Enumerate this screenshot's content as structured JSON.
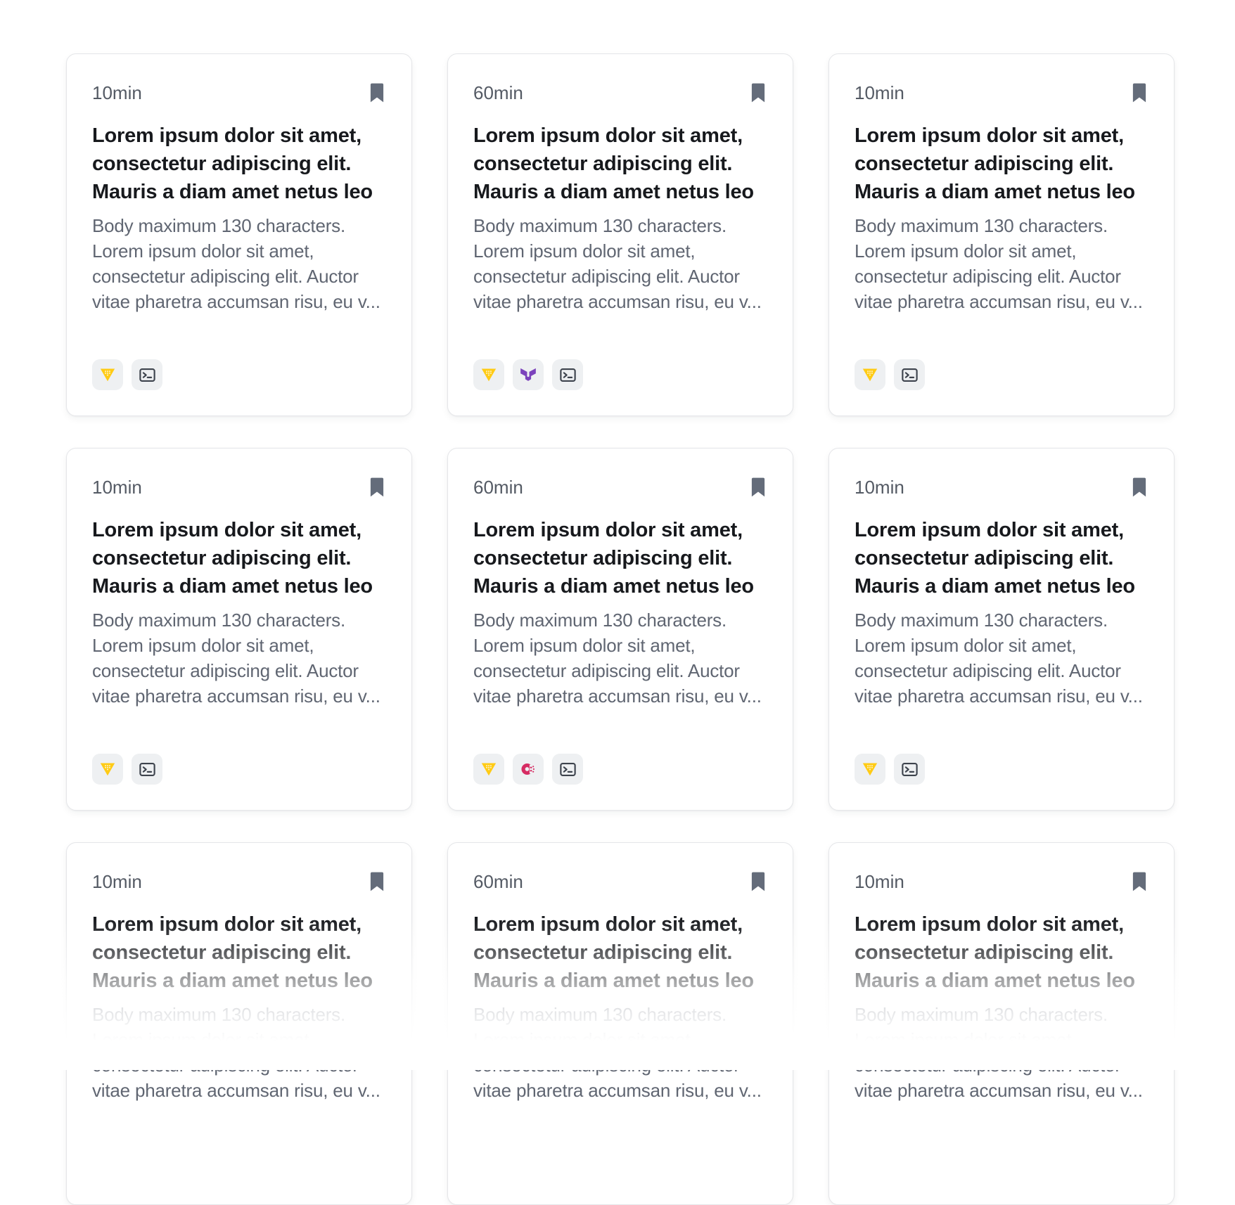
{
  "page": {
    "background": "#ffffff"
  },
  "colors": {
    "card-bg": "#ffffff",
    "card-border": "#e5e6e9",
    "title-text": "#17191d",
    "body-text": "#606672",
    "duration-text": "#545a64",
    "bookmark-fill": "#646c7a",
    "badge-bg": "#eef0f2",
    "instruqt-yellow": "#ffcb15",
    "terraform-purple": "#7b42bc",
    "consul-pink": "#d62c63",
    "terminal-dark": "#3d434d"
  },
  "cards": [
    {
      "duration": "10min",
      "title": "Lorem ipsum dolor sit amet, consectetur adipiscing elit. Mauris a diam amet netus leo",
      "body": "Body maximum 130 characters. Lorem ipsum dolor sit amet, consectetur adipiscing elit. Auctor vitae pharetra accumsan risu, eu v...",
      "bookmark_icon": "bookmark-icon",
      "tech_icons": [
        "instruqt",
        "terminal"
      ]
    },
    {
      "duration": "60min",
      "title": "Lorem ipsum dolor sit amet, consectetur adipiscing elit. Mauris a diam amet netus leo",
      "body": "Body maximum 130 characters. Lorem ipsum dolor sit amet, consectetur adipiscing elit. Auctor vitae pharetra accumsan risu, eu v...",
      "bookmark_icon": "bookmark-icon",
      "tech_icons": [
        "instruqt",
        "terraform",
        "terminal"
      ]
    },
    {
      "duration": "10min",
      "title": "Lorem ipsum dolor sit amet, consectetur adipiscing elit. Mauris a diam amet netus leo",
      "body": "Body maximum 130 characters. Lorem ipsum dolor sit amet, consectetur adipiscing elit. Auctor vitae pharetra accumsan risu, eu v...",
      "bookmark_icon": "bookmark-icon",
      "tech_icons": [
        "instruqt",
        "terminal"
      ]
    },
    {
      "duration": "10min",
      "title": "Lorem ipsum dolor sit amet, consectetur adipiscing elit. Mauris a diam amet netus leo",
      "body": "Body maximum 130 characters. Lorem ipsum dolor sit amet, consectetur adipiscing elit. Auctor vitae pharetra accumsan risu, eu v...",
      "bookmark_icon": "bookmark-icon",
      "tech_icons": [
        "instruqt",
        "terminal"
      ]
    },
    {
      "duration": "60min",
      "title": "Lorem ipsum dolor sit amet, consectetur adipiscing elit. Mauris a diam amet netus leo",
      "body": "Body maximum 130 characters. Lorem ipsum dolor sit amet, consectetur adipiscing elit. Auctor vitae pharetra accumsan risu, eu v...",
      "bookmark_icon": "bookmark-icon",
      "tech_icons": [
        "instruqt",
        "consul",
        "terminal"
      ]
    },
    {
      "duration": "10min",
      "title": "Lorem ipsum dolor sit amet, consectetur adipiscing elit. Mauris a diam amet netus leo",
      "body": "Body maximum 130 characters. Lorem ipsum dolor sit amet, consectetur adipiscing elit. Auctor vitae pharetra accumsan risu, eu v...",
      "bookmark_icon": "bookmark-icon",
      "tech_icons": [
        "instruqt",
        "terminal"
      ]
    },
    {
      "duration": "10min",
      "title": "Lorem ipsum dolor sit amet, consectetur adipiscing elit. Mauris a diam amet netus leo",
      "body": "Body maximum 130 characters. Lorem ipsum dolor sit amet, consectetur adipiscing elit. Auctor vitae pharetra accumsan risu, eu v...",
      "bookmark_icon": "bookmark-icon",
      "tech_icons": []
    },
    {
      "duration": "60min",
      "title": "Lorem ipsum dolor sit amet, consectetur adipiscing elit. Mauris a diam amet netus leo",
      "body": "Body maximum 130 characters. Lorem ipsum dolor sit amet, consectetur adipiscing elit. Auctor vitae pharetra accumsan risu, eu v...",
      "bookmark_icon": "bookmark-icon",
      "tech_icons": []
    },
    {
      "duration": "10min",
      "title": "Lorem ipsum dolor sit amet, consectetur adipiscing elit. Mauris a diam amet netus leo",
      "body": "Body maximum 130 characters. Lorem ipsum dolor sit amet, consectetur adipiscing elit. Auctor vitae pharetra accumsan risu, eu v...",
      "bookmark_icon": "bookmark-icon",
      "tech_icons": []
    }
  ]
}
